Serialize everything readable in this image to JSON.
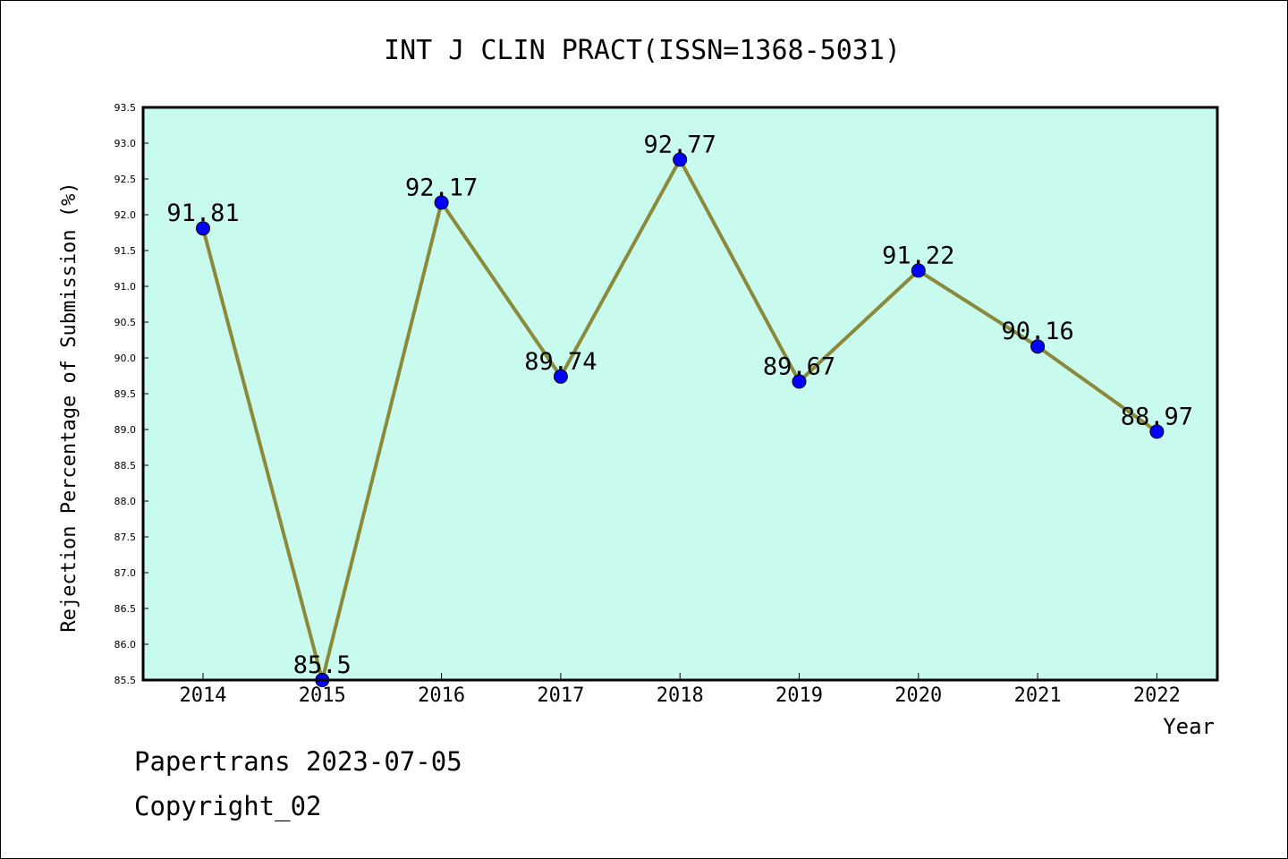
{
  "chart_data": {
    "type": "line",
    "title": "INT J CLIN PRACT(ISSN=1368-5031)",
    "xlabel": "Year",
    "ylabel": "Rejection Percentage of Submission (%)",
    "categories": [
      "2014",
      "2015",
      "2016",
      "2017",
      "2018",
      "2019",
      "2020",
      "2021",
      "2022"
    ],
    "values": [
      91.81,
      85.5,
      92.17,
      89.74,
      92.77,
      89.67,
      91.22,
      90.16,
      88.97
    ],
    "value_labels": [
      "91.81",
      "85.5",
      "92.17",
      "89.74",
      "92.77",
      "89.67",
      "91.22",
      "90.16",
      "88.97"
    ],
    "ylim": [
      85.5,
      93.5
    ],
    "yticks": [
      "85.5",
      "86.0",
      "86.5",
      "87.0",
      "87.5",
      "88.0",
      "88.5",
      "89.0",
      "89.5",
      "90.0",
      "90.5",
      "91.0",
      "91.5",
      "92.0",
      "92.5",
      "93.0",
      "93.5"
    ],
    "grid": false,
    "legend": "none",
    "colors": {
      "plot_background": "#c8fbee",
      "line": "#8b8a3a",
      "marker": "#0000ff"
    }
  },
  "footer": {
    "line1": "Papertrans 2023-07-05",
    "line2": "Copyright_02"
  }
}
